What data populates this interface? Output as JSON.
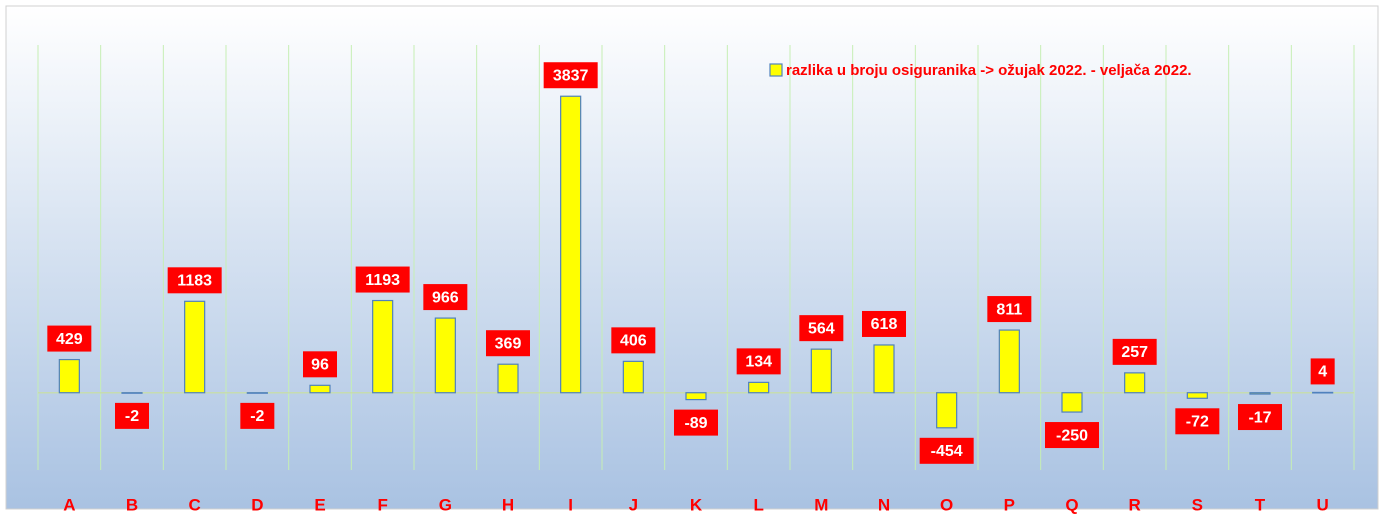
{
  "chart_data": {
    "type": "bar",
    "categories": [
      "A",
      "B",
      "C",
      "D",
      "E",
      "F",
      "G",
      "H",
      "I",
      "J",
      "K",
      "L",
      "M",
      "N",
      "O",
      "P",
      "Q",
      "R",
      "S",
      "T",
      "U"
    ],
    "series": [
      {
        "name": "razlika u broju osiguranika -> ožujak 2022. - veljača 2022.",
        "color": "#ffff00",
        "values": [
          429,
          -2,
          1183,
          -2,
          96,
          1193,
          966,
          369,
          3837,
          406,
          -89,
          134,
          564,
          618,
          -454,
          811,
          -250,
          257,
          -72,
          -17,
          4
        ]
      }
    ],
    "ylim": [
      -1000,
      4500
    ],
    "legend": "top-right"
  }
}
